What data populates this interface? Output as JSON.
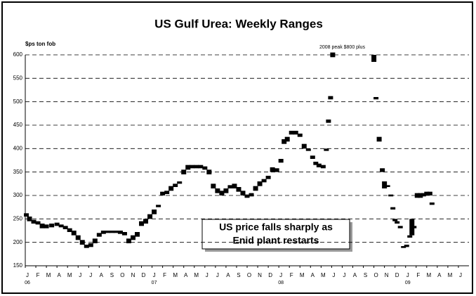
{
  "chart_data": {
    "type": "range",
    "title": "US Gulf Urea: Weekly Ranges",
    "y_label": "$ps ton fob",
    "peak_note": "2008 peak $800 plus",
    "annotation": [
      "US price falls sharply as",
      "Enid plant restarts"
    ],
    "color": "#000000",
    "ylim": [
      150,
      600
    ],
    "yticks": [
      150,
      200,
      250,
      300,
      350,
      400,
      450,
      500,
      550,
      600
    ],
    "grid": true,
    "xlim": [
      0,
      42
    ],
    "xticks": [
      {
        "value": 0,
        "label": "J"
      },
      {
        "value": 1,
        "label": "F"
      },
      {
        "value": 2,
        "label": "M"
      },
      {
        "value": 3,
        "label": "A"
      },
      {
        "value": 4,
        "label": "M"
      },
      {
        "value": 5,
        "label": "J"
      },
      {
        "value": 6,
        "label": "J"
      },
      {
        "value": 7,
        "label": "A"
      },
      {
        "value": 8,
        "label": "S"
      },
      {
        "value": 9,
        "label": "O"
      },
      {
        "value": 10,
        "label": "N"
      },
      {
        "value": 11,
        "label": "D"
      },
      {
        "value": 12,
        "label": "J"
      },
      {
        "value": 13,
        "label": "F"
      },
      {
        "value": 14,
        "label": "M"
      },
      {
        "value": 15,
        "label": "A"
      },
      {
        "value": 16,
        "label": "M"
      },
      {
        "value": 17,
        "label": "J"
      },
      {
        "value": 18,
        "label": "J"
      },
      {
        "value": 19,
        "label": "A"
      },
      {
        "value": 20,
        "label": "S"
      },
      {
        "value": 21,
        "label": "O"
      },
      {
        "value": 22,
        "label": "N"
      },
      {
        "value": 23,
        "label": "D"
      },
      {
        "value": 24,
        "label": "J"
      },
      {
        "value": 25,
        "label": "F"
      },
      {
        "value": 26,
        "label": "M"
      },
      {
        "value": 27,
        "label": "A"
      },
      {
        "value": 28,
        "label": "M"
      },
      {
        "value": 29,
        "label": "J"
      },
      {
        "value": 30,
        "label": "J"
      },
      {
        "value": 31,
        "label": "A"
      },
      {
        "value": 32,
        "label": "S"
      },
      {
        "value": 33,
        "label": "O"
      },
      {
        "value": 34,
        "label": "N"
      },
      {
        "value": 35,
        "label": "D"
      },
      {
        "value": 36,
        "label": "J"
      },
      {
        "value": 37,
        "label": "F"
      },
      {
        "value": 38,
        "label": "M"
      },
      {
        "value": 39,
        "label": "A"
      },
      {
        "value": 40,
        "label": "M"
      },
      {
        "value": 41,
        "label": "J"
      }
    ],
    "year_labels": [
      {
        "value": 0,
        "label": "06"
      },
      {
        "value": 12,
        "label": "07"
      },
      {
        "value": 24,
        "label": "08"
      },
      {
        "value": 36,
        "label": "09"
      }
    ],
    "x": [
      0.1,
      0.4,
      0.8,
      1.2,
      1.6,
      2.0,
      2.5,
      3.0,
      3.4,
      3.8,
      4.2,
      4.6,
      5.0,
      5.4,
      5.8,
      6.2,
      6.6,
      7.0,
      7.4,
      7.8,
      8.2,
      8.6,
      9.0,
      9.4,
      9.8,
      10.2,
      10.6,
      11.0,
      11.4,
      11.8,
      12.2,
      12.6,
      13.0,
      13.4,
      13.8,
      14.2,
      14.6,
      15.0,
      15.4,
      15.8,
      16.2,
      16.6,
      17.0,
      17.4,
      17.8,
      18.2,
      18.6,
      19.0,
      19.4,
      19.8,
      20.2,
      20.6,
      21.0,
      21.4,
      21.8,
      22.2,
      22.6,
      23.0,
      23.4,
      23.8,
      24.2,
      24.5,
      24.8,
      25.2,
      25.6,
      26.0,
      26.4,
      26.8,
      27.2,
      27.5,
      27.8,
      28.2,
      28.5,
      28.7,
      28.9,
      29.1,
      33.0,
      33.2,
      33.5,
      33.8,
      34.0,
      34.3,
      34.6,
      34.8,
      35.0,
      35.2,
      35.5,
      35.8,
      36.1,
      36.4,
      36.6,
      36.8,
      37.1,
      37.4,
      37.7,
      38.0,
      38.3,
      38.5
    ],
    "low": [
      255,
      245,
      240,
      238,
      230,
      230,
      232,
      235,
      232,
      228,
      222,
      215,
      205,
      195,
      188,
      190,
      198,
      212,
      218,
      220,
      220,
      220,
      218,
      215,
      198,
      205,
      212,
      235,
      240,
      250,
      260,
      275,
      300,
      303,
      310,
      318,
      325,
      345,
      355,
      358,
      358,
      358,
      355,
      345,
      315,
      305,
      300,
      305,
      315,
      315,
      308,
      300,
      295,
      298,
      310,
      320,
      328,
      335,
      350,
      350,
      370,
      410,
      415,
      430,
      430,
      425,
      400,
      395,
      378,
      365,
      360,
      358,
      395,
      455,
      505,
      595,
      585,
      505,
      415,
      350,
      315,
      318,
      298,
      270,
      245,
      240,
      230,
      188,
      190,
      210,
      215,
      230,
      295,
      295,
      298,
      300,
      300,
      280
    ],
    "high": [
      262,
      255,
      248,
      245,
      240,
      238,
      240,
      242,
      238,
      235,
      230,
      225,
      215,
      205,
      195,
      198,
      208,
      220,
      225,
      225,
      225,
      225,
      225,
      222,
      208,
      215,
      222,
      245,
      250,
      260,
      270,
      280,
      308,
      310,
      320,
      325,
      330,
      355,
      365,
      365,
      365,
      365,
      362,
      355,
      325,
      315,
      310,
      315,
      322,
      325,
      318,
      310,
      302,
      305,
      320,
      330,
      335,
      342,
      360,
      358,
      378,
      420,
      425,
      438,
      438,
      432,
      410,
      400,
      385,
      372,
      368,
      365,
      400,
      462,
      512,
      605,
      600,
      510,
      425,
      358,
      330,
      322,
      302,
      275,
      250,
      245,
      235,
      192,
      195,
      215,
      250,
      235,
      305,
      305,
      305,
      308,
      308,
      285
    ]
  }
}
